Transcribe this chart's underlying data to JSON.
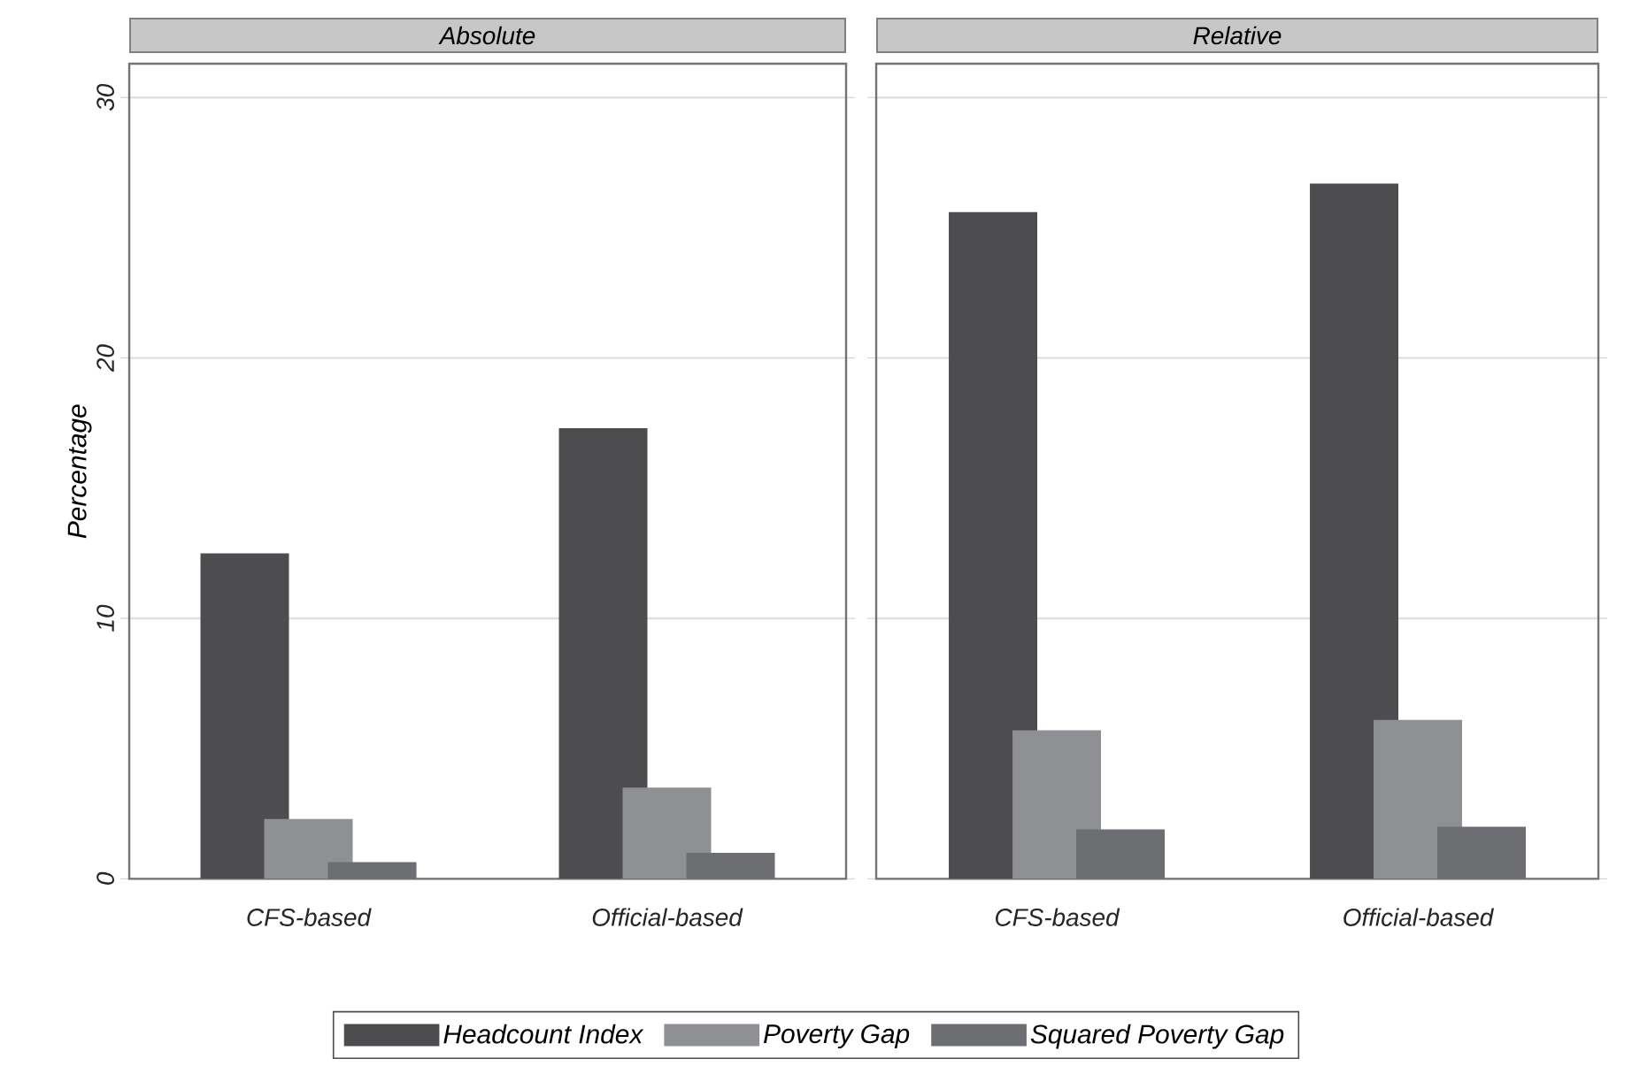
{
  "chart_data": [
    {
      "type": "bar",
      "title": "Absolute",
      "ylabel": "Percentage",
      "categories": [
        "CFS-based",
        "Official-based"
      ],
      "series": [
        {
          "name": "Headcount Index",
          "color": "#4d4d4f",
          "values": [
            12.5,
            17.3
          ]
        },
        {
          "name": "Poverty Gap",
          "color": "#8f9093",
          "values": [
            2.3,
            3.5
          ]
        },
        {
          "name": "Squared Poverty Gap",
          "color": "#6d6e71",
          "values": [
            0.64,
            1.0
          ]
        }
      ],
      "ylim": [
        0,
        31.3
      ],
      "yticks": [
        0,
        10,
        20,
        30
      ],
      "grid": "y",
      "legend": "bottom"
    },
    {
      "type": "bar",
      "title": "Relative",
      "categories": [
        "CFS-based",
        "Official-based"
      ],
      "series": [
        {
          "color": "#4d4d4f",
          "values": [
            25.6,
            26.7
          ]
        },
        {
          "color": "#8f9093",
          "values": [
            5.7,
            6.1
          ]
        },
        {
          "color": "#6d6e71",
          "values": [
            1.9,
            2.0
          ]
        }
      ],
      "ylim": [
        0,
        31.3
      ],
      "yticks": [
        0,
        10,
        20,
        30
      ],
      "grid": "y",
      "tick_labels": "x"
    }
  ]
}
